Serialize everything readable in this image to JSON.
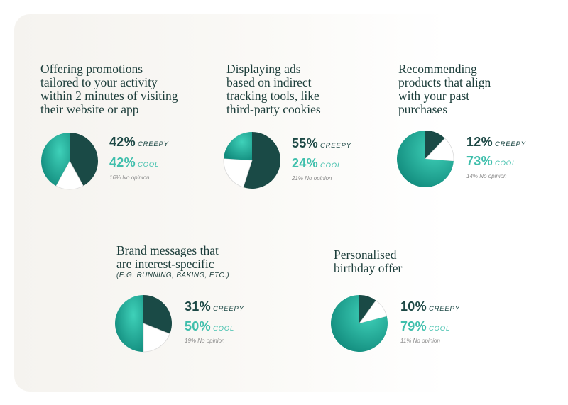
{
  "colors": {
    "creepy": "#1a4a46",
    "cool_light": "#3fd1b9",
    "cool_dark": "#118a7c",
    "no_opinion": "#ffffff",
    "cool_text": "#3fbfac",
    "creepy_text": "#1c4845"
  },
  "chart_data": [
    {
      "type": "pie",
      "title": "Offering promotions\ntailored to your activity\nwithin 2 minutes of visiting\ntheir website or app",
      "creepy": "42%",
      "cool": "42%",
      "no_opinion": "16%",
      "slices": [
        {
          "label": "CREEPY",
          "value": 42
        },
        {
          "label": "No opinion",
          "value": 16
        },
        {
          "label": "COOL",
          "value": 42
        }
      ]
    },
    {
      "type": "pie",
      "title": "Displaying ads\nbased on indirect\ntracking tools, like\nthird-party cookies",
      "creepy": "55%",
      "cool": "24%",
      "no_opinion": "21%",
      "slices": [
        {
          "label": "CREEPY",
          "value": 55
        },
        {
          "label": "No opinion",
          "value": 21
        },
        {
          "label": "COOL",
          "value": 24
        }
      ]
    },
    {
      "type": "pie",
      "title": "Recommending\nproducts that align\nwith your past\npurchases",
      "creepy": "12%",
      "cool": "73%",
      "no_opinion": "14%",
      "slices": [
        {
          "label": "CREEPY",
          "value": 12
        },
        {
          "label": "No opinion",
          "value": 14
        },
        {
          "label": "COOL",
          "value": 73
        }
      ]
    },
    {
      "type": "pie",
      "title": "Brand messages that\nare interest-specific",
      "subtitle": "(E.G. RUNNING, BAKING, ETC.)",
      "creepy": "31%",
      "cool": "50%",
      "no_opinion": "19%",
      "slices": [
        {
          "label": "CREEPY",
          "value": 31
        },
        {
          "label": "No opinion",
          "value": 19
        },
        {
          "label": "COOL",
          "value": 50
        }
      ]
    },
    {
      "type": "pie",
      "title": "Personalised\nbirthday offer",
      "creepy": "10%",
      "cool": "79%",
      "no_opinion": "11%",
      "slices": [
        {
          "label": "CREEPY",
          "value": 10
        },
        {
          "label": "No opinion",
          "value": 11
        },
        {
          "label": "COOL",
          "value": 79
        }
      ]
    }
  ],
  "labels": {
    "creepy": "CREEPY",
    "cool": "COOL",
    "no_opinion": "No opinion"
  }
}
